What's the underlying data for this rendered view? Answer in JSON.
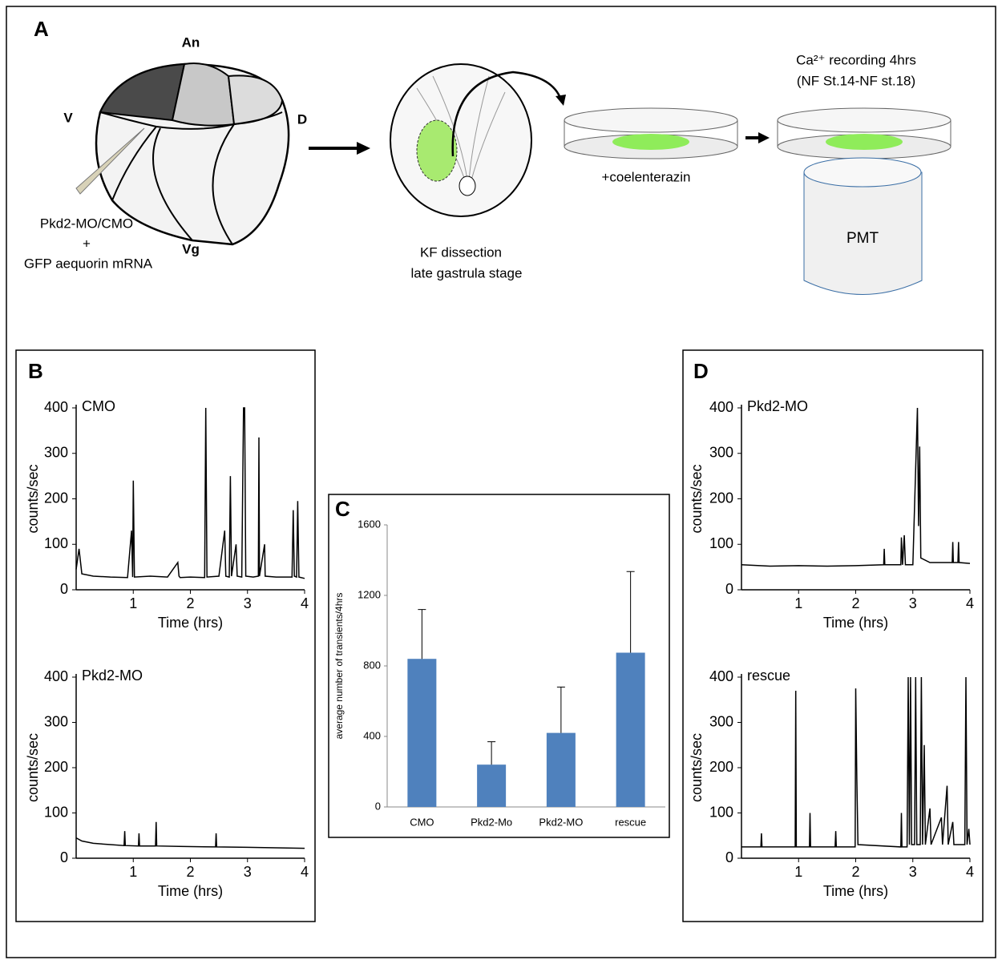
{
  "panel_a": {
    "label": "A",
    "animal": "An",
    "ventral": "V",
    "dorsal": "D",
    "vegetal": "Vg",
    "injection": [
      "Pkd2-MO/CMO",
      "+",
      "GFP aequorin mRNA"
    ],
    "dissection": [
      "KF dissection",
      "late gastrula stage"
    ],
    "substrate": "+coelenterazin",
    "recording": [
      "Ca²⁺ recording 4hrs",
      "(NF St.14-NF st.18)"
    ],
    "detector": "PMT"
  },
  "chart_data": [
    {
      "type": "line",
      "panel_label": "B",
      "annotation": "CMO",
      "y_label": "counts/sec",
      "x_label": "Time (hrs)",
      "color": "#000000",
      "xlim": [
        0,
        4
      ],
      "xticks": [
        1,
        2,
        3,
        4
      ],
      "ylim": [
        0,
        400
      ],
      "yticks": [
        0,
        100,
        200,
        300,
        400
      ],
      "x": [
        0,
        0.05,
        0.1,
        0.3,
        0.6,
        0.9,
        0.97,
        0.99,
        1.0,
        1.02,
        1.3,
        1.6,
        1.78,
        1.8,
        1.82,
        2.0,
        2.25,
        2.27,
        2.29,
        2.5,
        2.6,
        2.62,
        2.68,
        2.7,
        2.72,
        2.8,
        2.82,
        2.9,
        2.93,
        2.95,
        2.97,
        3.1,
        3.19,
        3.2,
        3.21,
        3.3,
        3.31,
        3.5,
        3.78,
        3.8,
        3.82,
        3.86,
        3.88,
        3.9,
        4.0
      ],
      "values": [
        45,
        90,
        35,
        30,
        28,
        27,
        130,
        28,
        240,
        28,
        30,
        28,
        60,
        30,
        27,
        28,
        27,
        400,
        28,
        30,
        130,
        30,
        28,
        250,
        30,
        100,
        30,
        28,
        400,
        400,
        30,
        28,
        30,
        335,
        30,
        100,
        30,
        28,
        28,
        175,
        30,
        28,
        195,
        28,
        25
      ]
    },
    {
      "type": "line",
      "annotation": "Pkd2-MO",
      "y_label": "counts/sec",
      "x_label": "Time (hrs)",
      "color": "#000000",
      "xlim": [
        0,
        4
      ],
      "xticks": [
        1,
        2,
        3,
        4
      ],
      "ylim": [
        0,
        400
      ],
      "yticks": [
        0,
        100,
        200,
        300,
        400
      ],
      "x": [
        0,
        0.1,
        0.3,
        0.6,
        0.84,
        0.85,
        0.86,
        1.09,
        1.1,
        1.11,
        1.39,
        1.4,
        1.41,
        1.8,
        2.44,
        2.45,
        2.46,
        3.0,
        3.5,
        4.0
      ],
      "values": [
        45,
        38,
        33,
        30,
        28,
        60,
        28,
        27,
        55,
        27,
        27,
        80,
        27,
        26,
        25,
        55,
        25,
        24,
        23,
        22
      ]
    },
    {
      "type": "bar",
      "panel_label": "C",
      "y_label": "average number of transients/4hrs",
      "color": "#4f81bd",
      "categories": [
        "CMO",
        "Pkd2-Mo",
        "Pkd2-MO",
        "rescue"
      ],
      "values": [
        840,
        240,
        420,
        875
      ],
      "errors": [
        280,
        130,
        260,
        460
      ],
      "ylim": [
        0,
        1600
      ],
      "yticks": [
        0,
        400,
        800,
        1200,
        1600
      ]
    },
    {
      "type": "line",
      "panel_label": "D",
      "annotation": "Pkd2-MO",
      "y_label": "counts/sec",
      "x_label": "Time (hrs)",
      "color": "#000000",
      "xlim": [
        0,
        4
      ],
      "xticks": [
        1,
        2,
        3,
        4
      ],
      "ylim": [
        0,
        400
      ],
      "yticks": [
        0,
        100,
        200,
        300,
        400
      ],
      "x": [
        0,
        0.5,
        1.0,
        1.5,
        2.0,
        2.49,
        2.5,
        2.51,
        2.79,
        2.8,
        2.82,
        2.85,
        2.87,
        3.0,
        3.08,
        3.1,
        3.12,
        3.14,
        3.3,
        3.69,
        3.7,
        3.71,
        3.79,
        3.8,
        3.81,
        4.0
      ],
      "values": [
        55,
        52,
        53,
        52,
        53,
        55,
        90,
        55,
        55,
        115,
        55,
        120,
        55,
        55,
        400,
        140,
        315,
        70,
        60,
        60,
        105,
        60,
        60,
        105,
        60,
        58
      ]
    },
    {
      "type": "line",
      "annotation": "rescue",
      "y_label": "counts/sec",
      "x_label": "Time (hrs)",
      "color": "#000000",
      "xlim": [
        0,
        4
      ],
      "xticks": [
        1,
        2,
        3,
        4
      ],
      "ylim": [
        0,
        400
      ],
      "yticks": [
        0,
        100,
        200,
        300,
        400
      ],
      "x": [
        0,
        0.34,
        0.35,
        0.36,
        0.94,
        0.95,
        0.96,
        1.19,
        1.2,
        1.21,
        1.64,
        1.65,
        1.66,
        1.99,
        2.0,
        2.02,
        2.04,
        2.79,
        2.8,
        2.81,
        2.9,
        2.92,
        2.94,
        2.96,
        2.98,
        3.03,
        3.05,
        3.07,
        3.13,
        3.15,
        3.17,
        3.2,
        3.22,
        3.3,
        3.32,
        3.5,
        3.52,
        3.6,
        3.62,
        3.7,
        3.72,
        3.91,
        3.93,
        3.95,
        3.98,
        4.0
      ],
      "values": [
        25,
        25,
        55,
        25,
        25,
        370,
        25,
        25,
        100,
        25,
        25,
        60,
        25,
        25,
        375,
        175,
        30,
        25,
        100,
        25,
        25,
        400,
        30,
        400,
        30,
        30,
        400,
        30,
        30,
        400,
        30,
        250,
        30,
        110,
        30,
        90,
        30,
        160,
        30,
        80,
        30,
        30,
        400,
        30,
        65,
        30
      ]
    }
  ]
}
